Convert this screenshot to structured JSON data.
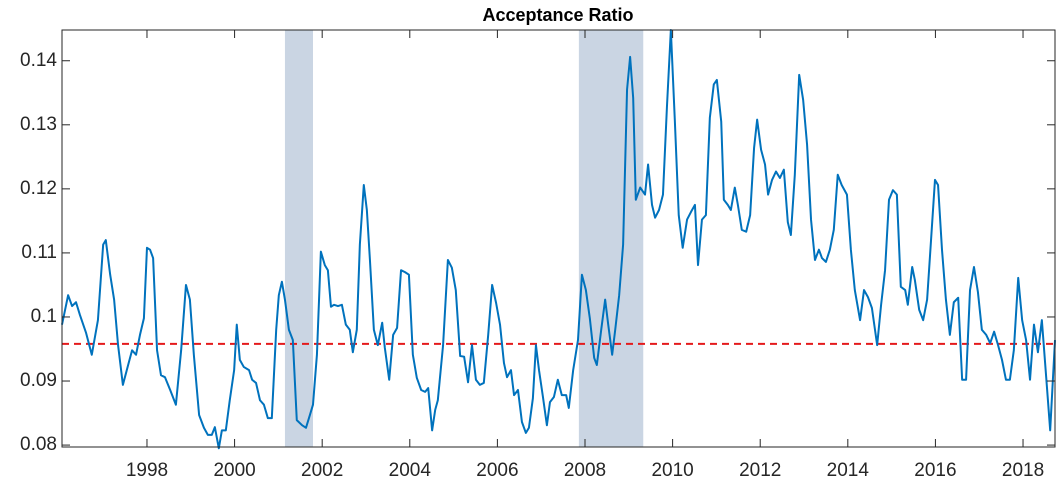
{
  "chart_data": {
    "type": "line",
    "title": "Acceptance Ratio",
    "xlim": [
      1996.06,
      2018.73
    ],
    "ylim": [
      0.0797,
      0.1448
    ],
    "xticks": [
      1998,
      2000,
      2002,
      2004,
      2006,
      2008,
      2010,
      2012,
      2014,
      2016,
      2018
    ],
    "yticks": [
      0.08,
      0.09,
      0.1,
      0.11,
      0.12,
      0.13,
      0.14
    ],
    "reference_line": {
      "value": 0.0958,
      "color": "#e41a1c"
    },
    "shaded_regions": {
      "color": "#cad5e3",
      "ranges": [
        [
          2001.15,
          2001.79
        ],
        [
          2007.86,
          2009.33
        ]
      ]
    },
    "x": [
      1996.06,
      1996.2,
      1996.29,
      1996.38,
      1996.47,
      1996.61,
      1996.74,
      1996.88,
      1997.0,
      1997.06,
      1997.16,
      1997.25,
      1997.34,
      1997.45,
      1997.57,
      1997.66,
      1997.75,
      1997.84,
      1997.93,
      1998.0,
      1998.07,
      1998.14,
      1998.23,
      1998.32,
      1998.41,
      1998.53,
      1998.66,
      1998.78,
      1998.89,
      1998.98,
      1999.07,
      1999.19,
      1999.3,
      1999.39,
      1999.48,
      1999.55,
      1999.64,
      1999.71,
      1999.8,
      1999.89,
      1999.99,
      2000.05,
      2000.12,
      2000.21,
      2000.33,
      2000.4,
      2000.49,
      2000.58,
      2000.67,
      2000.76,
      2000.85,
      2000.95,
      2001.01,
      2001.08,
      2001.15,
      2001.24,
      2001.33,
      2001.42,
      2001.54,
      2001.63,
      2001.72,
      2001.79,
      2001.88,
      2001.97,
      2002.06,
      2002.13,
      2002.2,
      2002.27,
      2002.36,
      2002.45,
      2002.54,
      2002.63,
      2002.7,
      2002.79,
      2002.86,
      2002.95,
      2003.02,
      2003.09,
      2003.18,
      2003.27,
      2003.37,
      2003.43,
      2003.53,
      2003.62,
      2003.71,
      2003.8,
      2003.89,
      2003.98,
      2004.07,
      2004.16,
      2004.26,
      2004.35,
      2004.42,
      2004.51,
      2004.58,
      2004.64,
      2004.76,
      2004.87,
      2004.96,
      2005.05,
      2005.15,
      2005.24,
      2005.33,
      2005.42,
      2005.51,
      2005.6,
      2005.69,
      2005.79,
      2005.88,
      2005.97,
      2006.06,
      2006.15,
      2006.22,
      2006.31,
      2006.38,
      2006.47,
      2006.56,
      2006.65,
      2006.72,
      2006.81,
      2006.88,
      2006.95,
      2007.04,
      2007.13,
      2007.2,
      2007.29,
      2007.38,
      2007.47,
      2007.57,
      2007.63,
      2007.73,
      2007.84,
      2007.93,
      2008.02,
      2008.11,
      2008.21,
      2008.27,
      2008.37,
      2008.46,
      2008.53,
      2008.62,
      2008.69,
      2008.78,
      2008.87,
      2008.96,
      2009.03,
      2009.1,
      2009.16,
      2009.26,
      2009.37,
      2009.44,
      2009.53,
      2009.6,
      2009.69,
      2009.78,
      2009.87,
      2009.96,
      2010.05,
      2010.14,
      2010.23,
      2010.33,
      2010.42,
      2010.51,
      2010.58,
      2010.67,
      2010.76,
      2010.85,
      2010.94,
      2011.01,
      2011.11,
      2011.17,
      2011.26,
      2011.33,
      2011.42,
      2011.49,
      2011.58,
      2011.68,
      2011.77,
      2011.86,
      2011.93,
      2012.02,
      2012.11,
      2012.18,
      2012.27,
      2012.36,
      2012.45,
      2012.54,
      2012.63,
      2012.7,
      2012.79,
      2012.89,
      2012.98,
      2013.07,
      2013.16,
      2013.25,
      2013.34,
      2013.41,
      2013.5,
      2013.59,
      2013.68,
      2013.77,
      2013.86,
      2013.98,
      2014.07,
      2014.16,
      2014.28,
      2014.37,
      2014.46,
      2014.55,
      2014.67,
      2014.76,
      2014.85,
      2014.94,
      2015.03,
      2015.12,
      2015.21,
      2015.31,
      2015.37,
      2015.47,
      2015.53,
      2015.63,
      2015.72,
      2015.81,
      2015.9,
      2015.99,
      2016.06,
      2016.15,
      2016.24,
      2016.33,
      2016.42,
      2016.52,
      2016.61,
      2016.7,
      2016.79,
      2016.88,
      2016.97,
      2017.06,
      2017.16,
      2017.25,
      2017.34,
      2017.43,
      2017.52,
      2017.61,
      2017.7,
      2017.79,
      2017.89,
      2017.98,
      2018.07,
      2018.16,
      2018.25,
      2018.34,
      2018.43,
      2018.53,
      2018.62,
      2018.73
    ],
    "series": [
      {
        "color": "#0072bd",
        "values": [
          0.0988,
          0.1034,
          0.1017,
          0.1023,
          0.1003,
          0.0975,
          0.0941,
          0.0995,
          0.1113,
          0.112,
          0.1066,
          0.1027,
          0.0956,
          0.0894,
          0.0925,
          0.0948,
          0.0941,
          0.0972,
          0.0998,
          0.1108,
          0.1105,
          0.1092,
          0.0948,
          0.0909,
          0.0906,
          0.0886,
          0.0863,
          0.0948,
          0.105,
          0.1027,
          0.0941,
          0.0847,
          0.0827,
          0.0816,
          0.0816,
          0.0828,
          0.0795,
          0.0823,
          0.0823,
          0.087,
          0.0917,
          0.0988,
          0.0933,
          0.0922,
          0.0917,
          0.0902,
          0.0897,
          0.087,
          0.0863,
          0.0842,
          0.0842,
          0.098,
          0.1034,
          0.1055,
          0.1027,
          0.098,
          0.0964,
          0.0839,
          0.0831,
          0.0827,
          0.0847,
          0.0863,
          0.0941,
          0.1102,
          0.1081,
          0.1073,
          0.1016,
          0.1019,
          0.1017,
          0.1019,
          0.0988,
          0.098,
          0.0945,
          0.098,
          0.1113,
          0.1206,
          0.1167,
          0.1089,
          0.098,
          0.0956,
          0.0991,
          0.0952,
          0.0902,
          0.0972,
          0.0983,
          0.1073,
          0.107,
          0.1066,
          0.0941,
          0.0905,
          0.0886,
          0.0883,
          0.0889,
          0.0823,
          0.0855,
          0.087,
          0.0956,
          0.1089,
          0.1077,
          0.1042,
          0.0939,
          0.0938,
          0.0898,
          0.0956,
          0.0902,
          0.0894,
          0.0897,
          0.0972,
          0.105,
          0.1022,
          0.0988,
          0.0928,
          0.0906,
          0.0917,
          0.0878,
          0.0886,
          0.0836,
          0.0819,
          0.0827,
          0.0873,
          0.0956,
          0.0917,
          0.0875,
          0.0831,
          0.0867,
          0.0875,
          0.0902,
          0.0878,
          0.0878,
          0.0858,
          0.0917,
          0.0964,
          0.1066,
          0.1042,
          0.0998,
          0.0936,
          0.0925,
          0.098,
          0.1027,
          0.0988,
          0.0941,
          0.098,
          0.1034,
          0.1113,
          0.1355,
          0.1406,
          0.1342,
          0.1183,
          0.1202,
          0.1191,
          0.1238,
          0.1175,
          0.1155,
          0.1167,
          0.1191,
          0.1327,
          0.1448,
          0.1308,
          0.1159,
          0.1108,
          0.1152,
          0.1164,
          0.1175,
          0.1081,
          0.1152,
          0.1159,
          0.1311,
          0.1363,
          0.137,
          0.1305,
          0.1183,
          0.1175,
          0.1167,
          0.1202,
          0.1175,
          0.1136,
          0.1133,
          0.1159,
          0.1264,
          0.1308,
          0.1261,
          0.1238,
          0.1191,
          0.1214,
          0.1227,
          0.1217,
          0.123,
          0.1148,
          0.1128,
          0.1222,
          0.1378,
          0.1339,
          0.1269,
          0.1152,
          0.1089,
          0.1105,
          0.1092,
          0.1086,
          0.1105,
          0.1136,
          0.1222,
          0.1206,
          0.1191,
          0.1105,
          0.1042,
          0.0995,
          0.1042,
          0.1031,
          0.1014,
          0.0956,
          0.1019,
          0.1073,
          0.1183,
          0.1198,
          0.1191,
          0.1047,
          0.1042,
          0.1019,
          0.1078,
          0.1058,
          0.1011,
          0.0995,
          0.1027,
          0.112,
          0.1214,
          0.1206,
          0.1105,
          0.1027,
          0.0972,
          0.1023,
          0.103,
          0.0902,
          0.0902,
          0.1042,
          0.1078,
          0.1039,
          0.098,
          0.0972,
          0.0959,
          0.0977,
          0.0956,
          0.0933,
          0.0902,
          0.0902,
          0.0948,
          0.1061,
          0.0995,
          0.0964,
          0.0902,
          0.0988,
          0.0945,
          0.0995,
          0.0905,
          0.0823,
          0.0964
        ]
      }
    ]
  }
}
